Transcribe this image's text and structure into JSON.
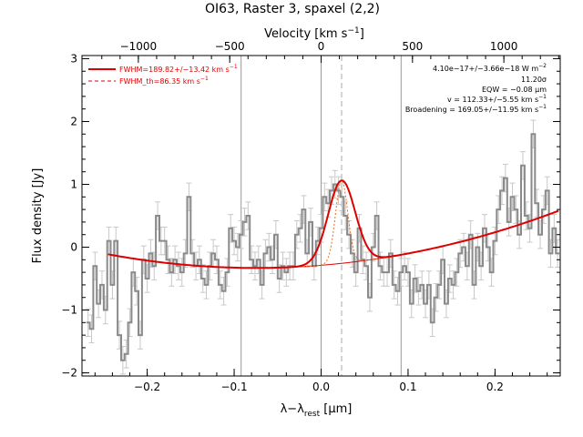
{
  "chart_data": {
    "type": "line",
    "title": "OI63, Raster 3, spaxel (2,2)",
    "xlabel": "λ−λ",
    "xlabel_sub": "rest",
    "xlabel_unit": " [μm]",
    "ylabel": "Flux density [Jy]",
    "top_label": "Velocity [km s",
    "top_label_sup": "−1",
    "top_label_end": "]",
    "xlim": [
      -0.275,
      0.275
    ],
    "ylim": [
      -2.05,
      3.05
    ],
    "vlim_from_x": 4758,
    "xticks": [
      -0.2,
      -0.1,
      0.0,
      0.1,
      0.2
    ],
    "xtick_labels": [
      "−0.2",
      "−0.1",
      "0.0",
      "0.1",
      "0.2"
    ],
    "yticks": [
      -2,
      -1,
      0,
      1,
      2,
      3
    ],
    "ytick_labels": [
      "−2",
      "−1",
      "0",
      "1",
      "2",
      "3"
    ],
    "vticks": [
      -1000,
      -500,
      0,
      500,
      1000
    ],
    "vtick_labels": [
      "−1000",
      "−500",
      "0",
      "500",
      "1000"
    ],
    "vertical_lines": [
      -0.092,
      0.0,
      0.092
    ],
    "line_center": 0.0236,
    "legend": [
      {
        "label": "FWHM=189.82+/−13.42 km s",
        "sup": "−1",
        "style": "solid"
      },
      {
        "label": "FWHM_th=86.35 km s",
        "sup": "−1",
        "style": "dashed"
      }
    ],
    "annotations": [
      {
        "text": "4.10e−17+/−3.66e−18 W m",
        "sup": "−2"
      },
      {
        "text": "11.20σ",
        "sup": ""
      },
      {
        "text": "EQW = −0.08 μm",
        "sup": ""
      },
      {
        "text": "v = 112.33+/−5.55 km s",
        "sup": "−1"
      },
      {
        "text": "Broadening = 169.05+/−11.95 km s",
        "sup": "−1"
      }
    ],
    "series": [
      {
        "step_x": [
          -0.268,
          -0.264,
          -0.26,
          -0.256,
          -0.252,
          -0.248,
          -0.244,
          -0.24,
          -0.236,
          -0.232,
          -0.228,
          -0.224,
          -0.22,
          -0.216,
          -0.212,
          -0.208,
          -0.204,
          -0.2,
          -0.196,
          -0.192,
          -0.188,
          -0.184,
          -0.18,
          -0.176,
          -0.172,
          -0.168,
          -0.164,
          -0.16,
          -0.156,
          -0.152,
          -0.148,
          -0.144,
          -0.14,
          -0.136,
          -0.132,
          -0.128,
          -0.124,
          -0.12,
          -0.116,
          -0.112,
          -0.108,
          -0.104,
          -0.1,
          -0.096,
          -0.092,
          -0.088,
          -0.084,
          -0.08,
          -0.076,
          -0.072,
          -0.068,
          -0.064,
          -0.06,
          -0.056,
          -0.052,
          -0.048,
          -0.044,
          -0.04,
          -0.036,
          -0.032,
          -0.028,
          -0.024,
          -0.02,
          -0.016,
          -0.012,
          -0.008,
          -0.004,
          0.0,
          0.004,
          0.008,
          0.012,
          0.016,
          0.02,
          0.024,
          0.028,
          0.032,
          0.036,
          0.04,
          0.044,
          0.048,
          0.052,
          0.056,
          0.06,
          0.064,
          0.068,
          0.072,
          0.076,
          0.08,
          0.084,
          0.088,
          0.092,
          0.096,
          0.1,
          0.104,
          0.108,
          0.112,
          0.116,
          0.12,
          0.124,
          0.128,
          0.132,
          0.136,
          0.14,
          0.144,
          0.148,
          0.152,
          0.156,
          0.16,
          0.164,
          0.168,
          0.172,
          0.176,
          0.18,
          0.184,
          0.188,
          0.192,
          0.196,
          0.2,
          0.204,
          0.208,
          0.212,
          0.216,
          0.22,
          0.224,
          0.228,
          0.232,
          0.236,
          0.24,
          0.244,
          0.248,
          0.252,
          0.256,
          0.26,
          0.264,
          0.268,
          0.272
        ],
        "step_y": [
          -1.2,
          -1.3,
          -0.3,
          -0.9,
          -0.6,
          -1.0,
          0.1,
          -0.6,
          0.1,
          -1.4,
          -1.8,
          -1.7,
          -1.2,
          -0.4,
          -0.7,
          -1.4,
          -0.2,
          -0.5,
          -0.1,
          -0.3,
          0.5,
          0.1,
          0.1,
          -0.2,
          -0.4,
          -0.2,
          -0.3,
          -0.4,
          -0.1,
          0.8,
          -0.1,
          -0.3,
          -0.2,
          -0.5,
          -0.6,
          -0.3,
          -0.1,
          -0.2,
          -0.6,
          -0.7,
          -0.4,
          0.3,
          0.1,
          0.0,
          0.2,
          0.4,
          0.5,
          -0.2,
          -0.3,
          -0.2,
          -0.6,
          -0.1,
          0.0,
          -0.2,
          0.2,
          -0.5,
          -0.3,
          -0.4,
          -0.3,
          -0.3,
          0.2,
          0.3,
          0.6,
          -0.1,
          0.4,
          -0.3,
          0.1,
          0.3,
          0.8,
          0.7,
          0.9,
          1.0,
          0.9,
          0.8,
          0.5,
          0.2,
          -0.1,
          -0.4,
          0.3,
          -0.2,
          -0.3,
          -0.8,
          0.0,
          0.5,
          -0.3,
          -0.4,
          -0.4,
          -0.1,
          -0.6,
          -0.7,
          -0.4,
          -0.3,
          -0.4,
          -0.9,
          -0.5,
          -0.7,
          -0.6,
          -0.9,
          -0.6,
          -1.2,
          -0.8,
          -0.6,
          -0.2,
          -0.9,
          -0.5,
          -0.6,
          -0.4,
          -0.1,
          0.0,
          -0.3,
          0.2,
          -0.6,
          0.0,
          -0.3,
          0.3,
          0.0,
          -0.4,
          0.1,
          0.6,
          0.9,
          1.1,
          0.4,
          0.8,
          0.6,
          0.2,
          1.3,
          0.5,
          0.3,
          1.8,
          0.7,
          0.2,
          0.6,
          0.9,
          -0.1,
          0.3,
          -0.1
        ],
        "error": 0.22
      }
    ]
  }
}
